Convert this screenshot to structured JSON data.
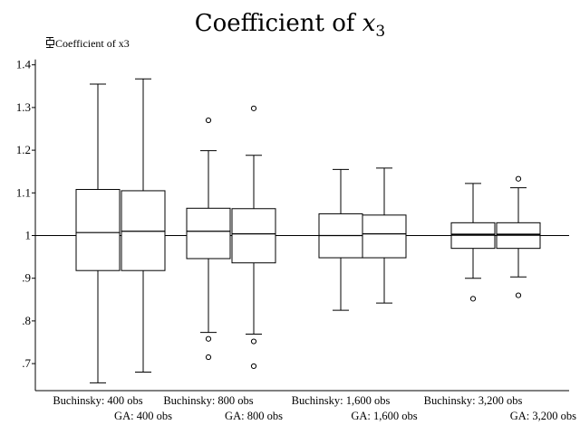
{
  "chart_data": {
    "type": "box",
    "title": "Coefficient of x3",
    "title_text": "Coefficient of ",
    "title_var": "x",
    "title_sub": "3",
    "legend_label": "Coefficient of x3",
    "ylim": [
      0.64,
      1.4
    ],
    "yticks": [
      0.7,
      0.8,
      0.9,
      1.0,
      1.1,
      1.2,
      1.3,
      1.4
    ],
    "ytick_labels": [
      ".7",
      ".8",
      ".9",
      "1",
      "1.1",
      "1.2",
      "1.3",
      "1.4"
    ],
    "reference_line": 1.0,
    "grid": false,
    "categories": [
      "Buchinsky: 400 obs",
      "GA: 400 obs",
      "Buchinsky: 800 obs",
      "GA: 800 obs",
      "Buchinsky: 1,600 obs",
      "GA: 1,600 obs",
      "Buchinsky: 3,200 obs",
      "GA: 3,200 obs"
    ],
    "boxes": [
      {
        "name": "Buchinsky: 400 obs",
        "whisker_low": 0.655,
        "q1": 0.918,
        "median": 1.007,
        "q3": 1.108,
        "whisker_high": 1.355,
        "outliers": []
      },
      {
        "name": "GA: 400 obs",
        "whisker_low": 0.68,
        "q1": 0.918,
        "median": 1.01,
        "q3": 1.105,
        "whisker_high": 1.367,
        "outliers": []
      },
      {
        "name": "Buchinsky: 800 obs",
        "whisker_low": 0.773,
        "q1": 0.946,
        "median": 1.01,
        "q3": 1.064,
        "whisker_high": 1.199,
        "outliers": [
          1.27,
          0.758,
          0.715
        ]
      },
      {
        "name": "GA: 800 obs",
        "whisker_low": 0.769,
        "q1": 0.936,
        "median": 1.004,
        "q3": 1.063,
        "whisker_high": 1.188,
        "outliers": [
          1.298,
          0.752,
          0.694
        ]
      },
      {
        "name": "Buchinsky: 1,600 obs",
        "whisker_low": 0.825,
        "q1": 0.948,
        "median": 1.0,
        "q3": 1.051,
        "whisker_high": 1.155,
        "outliers": []
      },
      {
        "name": "GA: 1,600 obs",
        "whisker_low": 0.842,
        "q1": 0.948,
        "median": 1.004,
        "q3": 1.048,
        "whisker_high": 1.158,
        "outliers": []
      },
      {
        "name": "Buchinsky: 3,200 obs",
        "whisker_low": 0.9,
        "q1": 0.97,
        "median": 1.002,
        "q3": 1.03,
        "whisker_high": 1.122,
        "outliers": [
          0.852
        ]
      },
      {
        "name": "GA: 3,200 obs",
        "whisker_low": 0.903,
        "q1": 0.97,
        "median": 1.002,
        "q3": 1.03,
        "whisker_high": 1.112,
        "outliers": [
          1.133,
          0.86
        ]
      }
    ]
  }
}
